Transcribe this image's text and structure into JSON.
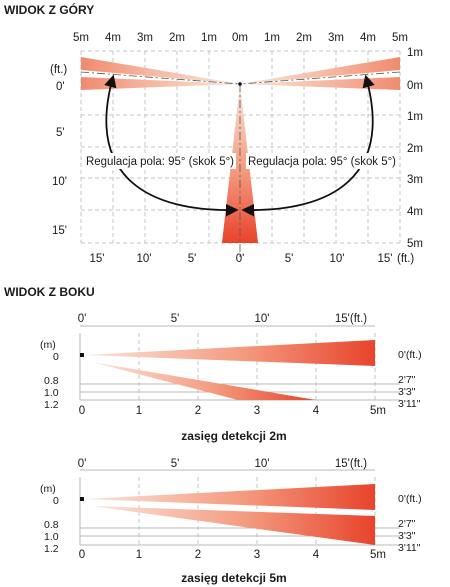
{
  "top_view": {
    "title": "WIDOK Z GÓRY",
    "top_m_ticks": [
      "5m",
      "4m",
      "3m",
      "2m",
      "1m",
      "0m",
      "1m",
      "2m",
      "3m",
      "4m",
      "5m"
    ],
    "right_m_ticks": [
      "1m",
      "0m",
      "1m",
      "2m",
      "3m",
      "4m",
      "5m"
    ],
    "left_ft_unit": "(ft.)",
    "left_ft_ticks": [
      "0'",
      "5'",
      "10'",
      "15'"
    ],
    "bottom_ft_ticks": [
      "15'",
      "10'",
      "5'",
      "0'",
      "5'",
      "10'",
      "15'"
    ],
    "bottom_ft_unit": "(ft.)",
    "adjust_left": "Regulacja pola: 95° (skok 5°)",
    "adjust_right": "Regulacja pola: 95° (skok 5°)"
  },
  "side_view": {
    "title": "WIDOK Z BOKU",
    "panels": [
      {
        "ft_ticks": [
          "0'",
          "5'",
          "10'",
          "15'(ft.)"
        ],
        "left_labels": [
          "(m)",
          "0",
          "0.8",
          "1.0",
          "1.2"
        ],
        "right_labels": [
          "0'(ft.)",
          "2'7\"",
          "3'3\"",
          "3'11\""
        ],
        "m_ticks": [
          "0",
          "1",
          "2",
          "3",
          "4",
          "5m"
        ],
        "caption": "zasięg detekcji 2m"
      },
      {
        "ft_ticks": [
          "0'",
          "5'",
          "10'",
          "15'(ft.)"
        ],
        "left_labels": [
          "(m)",
          "0",
          "0.8",
          "1.0",
          "1.2"
        ],
        "right_labels": [
          "0'(ft.)",
          "2'7\"",
          "3'3\"",
          "3'11\""
        ],
        "m_ticks": [
          "0",
          "1",
          "2",
          "3",
          "4",
          "5m"
        ],
        "caption": "zasięg detekcji 5m"
      }
    ]
  },
  "colors": {
    "beam_light": "#fbe3d8",
    "beam_dark": "#e8432c",
    "arrow": "#111111"
  }
}
